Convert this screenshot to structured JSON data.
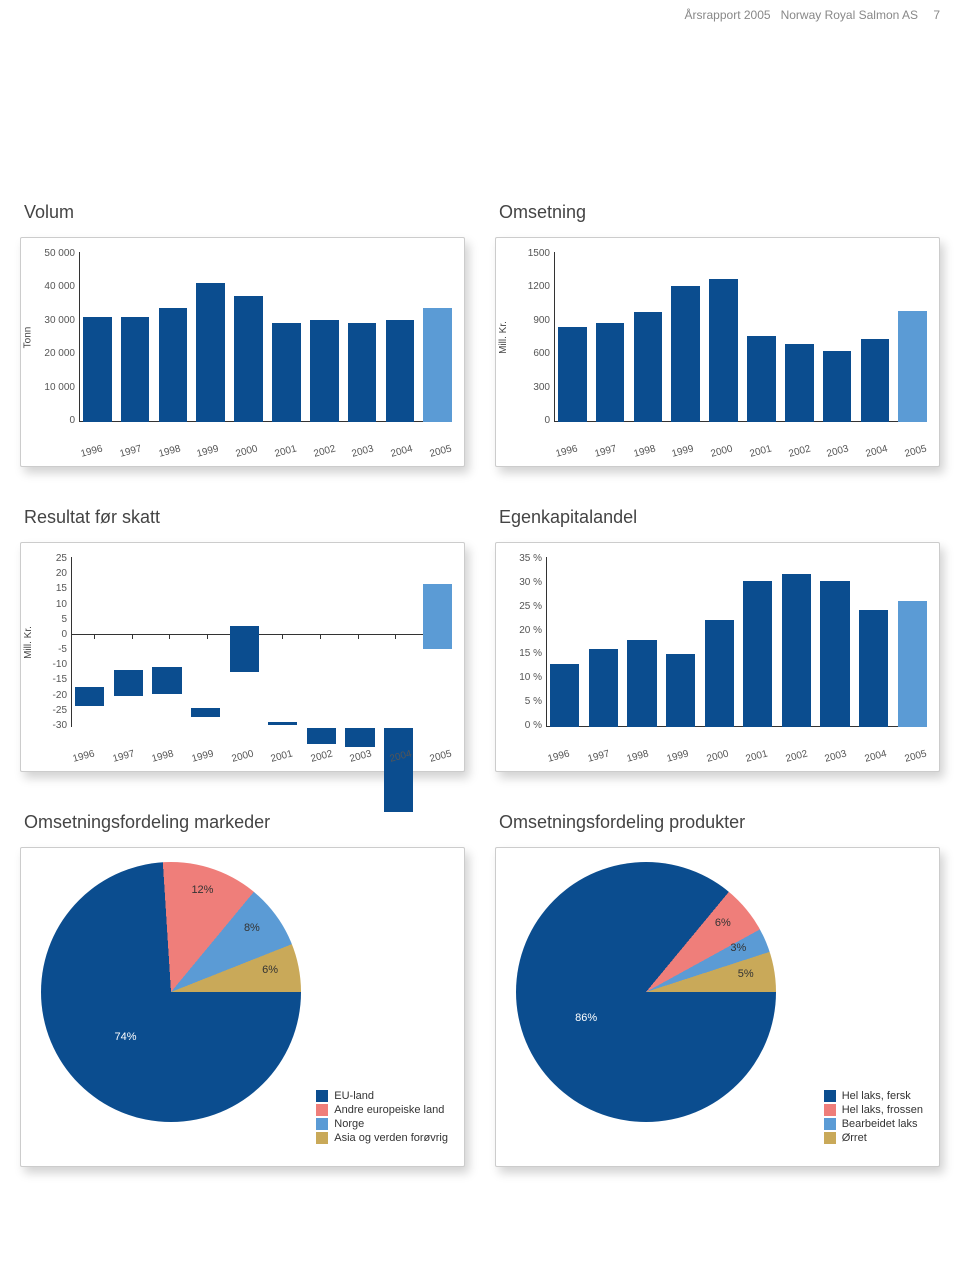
{
  "header": {
    "left": "Årsrapport 2005",
    "mid": "Norway Royal Salmon AS",
    "page": "7"
  },
  "years": [
    "1996",
    "1997",
    "1998",
    "1999",
    "2000",
    "2001",
    "2002",
    "2003",
    "2004",
    "2005"
  ],
  "colors": {
    "bar": "#0b4d8f",
    "hilite": "#5b9bd5",
    "pie_red": "#ef7e7a",
    "pie_blue": "#5b9bd5",
    "pie_gold": "#c9a959",
    "axis": "#333",
    "text": "#555"
  },
  "volum": {
    "title": "Volum",
    "ylab": "Tonn",
    "ymax": 50000,
    "yticks": [
      "50 000",
      "40 000",
      "30 000",
      "20 000",
      "10 000",
      "0"
    ],
    "values": [
      31000,
      31000,
      33500,
      41000,
      37000,
      29000,
      30000,
      29000,
      30000,
      33500
    ],
    "hilite": 9
  },
  "omsetning": {
    "title": "Omsetning",
    "ylab": "Mill. Kr.",
    "ymax": 1500,
    "yticks": [
      "1500",
      "1200",
      "900",
      "600",
      "300",
      "0"
    ],
    "values": [
      840,
      870,
      970,
      1200,
      1260,
      760,
      690,
      630,
      730,
      980
    ],
    "hilite": 9
  },
  "resultat": {
    "title": "Resultat før skatt",
    "ylab": "Mill. Kr.",
    "ymin": -30,
    "ymax": 25,
    "yticks": [
      "25",
      "20",
      "15",
      "10",
      "5",
      "0",
      "-5",
      "-10",
      "-15",
      "-20",
      "-25",
      "-30"
    ],
    "values": [
      6,
      8.5,
      9,
      3,
      15,
      1,
      -5,
      -6,
      -27,
      21
    ],
    "hilite": 9
  },
  "egenkap": {
    "title": "Egenkapitalandel",
    "ylab": "",
    "ymax": 35,
    "yticks": [
      "35 %",
      "30 %",
      "25 %",
      "20 %",
      "15 %",
      "10 %",
      "5 %",
      "0 %"
    ],
    "values": [
      13,
      16,
      18,
      15,
      22,
      30,
      31.5,
      30,
      24,
      26
    ],
    "hilite": 9
  },
  "markeder": {
    "title": "Omsetningsfordeling markeder",
    "slices": [
      {
        "label": "EU-land",
        "pct": 74,
        "pctlabel": "74%",
        "color": "#0b4d8f"
      },
      {
        "label": "Andre europeiske land",
        "pct": 12,
        "pctlabel": "12%",
        "color": "#ef7e7a"
      },
      {
        "label": "Norge",
        "pct": 8,
        "pctlabel": "8%",
        "color": "#5b9bd5"
      },
      {
        "label": "Asia og verden forøvrig",
        "pct": 6,
        "pctlabel": "6%",
        "color": "#c9a959"
      }
    ]
  },
  "produkter": {
    "title": "Omsetningsfordeling produkter",
    "slices": [
      {
        "label": "Hel laks, fersk",
        "pct": 86,
        "pctlabel": "86%",
        "color": "#0b4d8f"
      },
      {
        "label": "Hel laks, frossen",
        "pct": 6,
        "pctlabel": "6%",
        "color": "#ef7e7a"
      },
      {
        "label": "Bearbeidet laks",
        "pct": 3,
        "pctlabel": "3%",
        "color": "#5b9bd5"
      },
      {
        "label": "Ørret",
        "pct": 5,
        "pctlabel": "5%",
        "color": "#c9a959"
      }
    ]
  }
}
